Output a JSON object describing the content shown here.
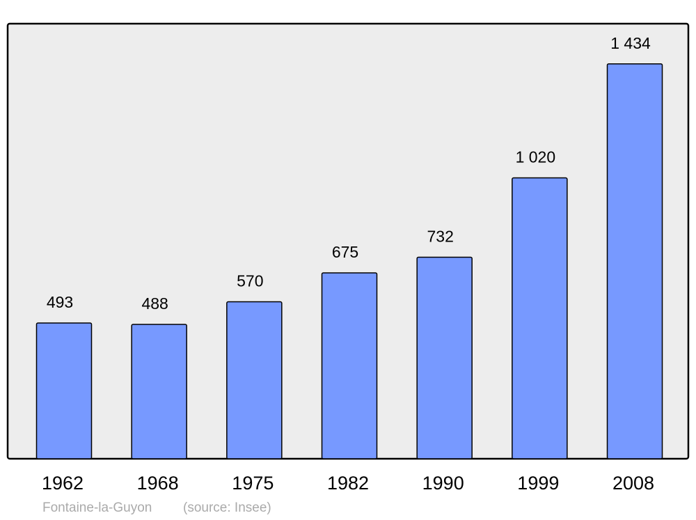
{
  "chart_data": {
    "type": "bar",
    "categories": [
      "1962",
      "1968",
      "1975",
      "1982",
      "1990",
      "1999",
      "2008"
    ],
    "values": [
      493,
      488,
      570,
      675,
      732,
      1020,
      1434
    ],
    "value_labels": [
      "493",
      "488",
      "570",
      "675",
      "732",
      "1 020",
      "1 434"
    ],
    "color": "#7799ff",
    "ylim": [
      0,
      1580
    ],
    "caption": {
      "place": "Fontaine-la-Guyon",
      "source": "(source: Insee)"
    }
  }
}
